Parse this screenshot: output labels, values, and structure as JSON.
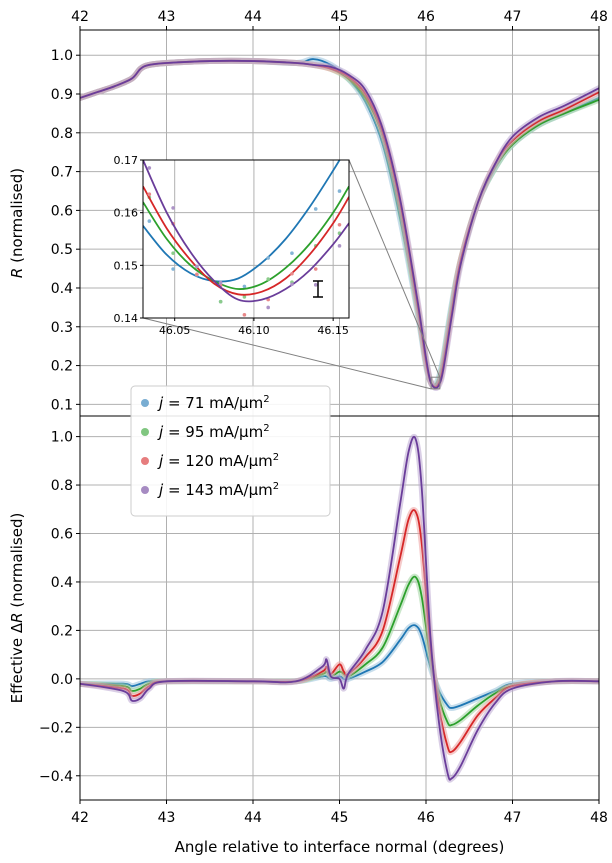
{
  "colors": {
    "j71": "#1f77b4",
    "j95": "#2ca02c",
    "j120": "#d62728",
    "j143": "#6a3d9a",
    "grid": "#b0b0b0"
  },
  "chart_data": [
    {
      "id": "top",
      "type": "line",
      "xlabel": "",
      "ylabel_italic": "R",
      "ylabel_rest": " (normalised)",
      "xlim": [
        42,
        48
      ],
      "ylim": [
        0.07,
        1.065
      ],
      "xticks": [
        "42",
        "43",
        "44",
        "45",
        "46",
        "47",
        "48"
      ],
      "yticks": [
        "0.1",
        "0.2",
        "0.3",
        "0.4",
        "0.5",
        "0.6",
        "0.7",
        "0.8",
        "0.9",
        "1.0"
      ],
      "grid": true,
      "x": [
        42.0,
        42.2,
        42.4,
        42.6,
        42.7,
        42.8,
        43.0,
        43.5,
        44.0,
        44.5,
        44.7,
        44.9,
        45.1,
        45.3,
        45.5,
        45.7,
        45.9,
        46.0,
        46.05,
        46.1,
        46.15,
        46.2,
        46.3,
        46.4,
        46.6,
        46.8,
        47.0,
        47.3,
        47.6,
        48.0
      ],
      "series": [
        {
          "name_prefix": "j",
          "name_value": "71 mA/μm",
          "name_sup": "2",
          "color_key": "j71",
          "values": [
            0.89,
            0.905,
            0.92,
            0.94,
            0.965,
            0.975,
            0.98,
            0.985,
            0.985,
            0.98,
            0.99,
            0.975,
            0.94,
            0.88,
            0.77,
            0.58,
            0.34,
            0.2,
            0.16,
            0.15,
            0.17,
            0.22,
            0.36,
            0.47,
            0.62,
            0.71,
            0.77,
            0.82,
            0.85,
            0.89
          ]
        },
        {
          "name_prefix": "j",
          "name_value": "95 mA/μm",
          "name_sup": "2",
          "color_key": "j95",
          "values": [
            0.89,
            0.905,
            0.92,
            0.94,
            0.965,
            0.975,
            0.98,
            0.985,
            0.985,
            0.98,
            0.975,
            0.965,
            0.94,
            0.89,
            0.79,
            0.6,
            0.35,
            0.21,
            0.16,
            0.146,
            0.16,
            0.21,
            0.35,
            0.47,
            0.62,
            0.71,
            0.77,
            0.82,
            0.85,
            0.885
          ]
        },
        {
          "name_prefix": "j",
          "name_value": "120 mA/μm",
          "name_sup": "2",
          "color_key": "j120",
          "values": [
            0.89,
            0.905,
            0.92,
            0.94,
            0.965,
            0.975,
            0.98,
            0.985,
            0.985,
            0.98,
            0.975,
            0.965,
            0.945,
            0.9,
            0.8,
            0.62,
            0.36,
            0.21,
            0.16,
            0.145,
            0.155,
            0.2,
            0.34,
            0.47,
            0.62,
            0.72,
            0.78,
            0.83,
            0.86,
            0.905
          ]
        },
        {
          "name_prefix": "j",
          "name_value": "143 mA/μm",
          "name_sup": "2",
          "color_key": "j143",
          "values": [
            0.89,
            0.905,
            0.92,
            0.94,
            0.965,
            0.975,
            0.98,
            0.985,
            0.985,
            0.98,
            0.975,
            0.97,
            0.95,
            0.91,
            0.81,
            0.63,
            0.37,
            0.22,
            0.16,
            0.143,
            0.15,
            0.19,
            0.33,
            0.46,
            0.62,
            0.72,
            0.79,
            0.84,
            0.87,
            0.915
          ]
        }
      ]
    },
    {
      "id": "inset",
      "type": "line",
      "xlim": [
        46.03,
        46.16
      ],
      "ylim": [
        0.14,
        0.17
      ],
      "xticks": [
        {
          "value": 46.05,
          "label": "46.05"
        },
        {
          "value": 46.1,
          "label": "46.10"
        },
        {
          "value": 46.15,
          "label": "46.15"
        }
      ],
      "yticks": [
        {
          "value": 0.14,
          "label": "0.14"
        },
        {
          "value": 0.15,
          "label": "0.15"
        },
        {
          "value": 0.16,
          "label": "0.16"
        },
        {
          "value": 0.17,
          "label": "0.17"
        }
      ],
      "grid": true,
      "x": [
        46.03,
        46.045,
        46.06,
        46.075,
        46.09,
        46.105,
        46.12,
        46.135,
        46.15,
        46.16
      ],
      "series": [
        {
          "color_key": "j71",
          "values": [
            0.1575,
            0.152,
            0.1485,
            0.147,
            0.1475,
            0.1505,
            0.155,
            0.161,
            0.168,
            0.173
          ]
        },
        {
          "color_key": "j95",
          "values": [
            0.162,
            0.155,
            0.15,
            0.147,
            0.1455,
            0.1465,
            0.1495,
            0.154,
            0.16,
            0.165
          ]
        },
        {
          "color_key": "j120",
          "values": [
            0.165,
            0.157,
            0.151,
            0.1465,
            0.1445,
            0.145,
            0.1475,
            0.152,
            0.158,
            0.163
          ]
        },
        {
          "color_key": "j143",
          "values": [
            0.17,
            0.16,
            0.1525,
            0.147,
            0.1435,
            0.1435,
            0.1455,
            0.149,
            0.154,
            0.158
          ]
        }
      ]
    },
    {
      "id": "bottom",
      "type": "line",
      "xlabel": "Angle relative to interface normal (degrees)",
      "ylabel_rest_pre": "Effective Δ",
      "ylabel_italic": "R",
      "ylabel_rest": " (normalised)",
      "xlim": [
        42,
        48
      ],
      "ylim": [
        -0.5,
        1.085
      ],
      "xticks": [
        "42",
        "43",
        "44",
        "45",
        "46",
        "47",
        "48"
      ],
      "yticks": [
        "−0.4",
        "−0.2",
        "0.0",
        "0.2",
        "0.4",
        "0.6",
        "0.8",
        "1.0"
      ],
      "grid": true,
      "x": [
        42.0,
        42.5,
        42.6,
        42.7,
        42.8,
        43.0,
        44.0,
        44.5,
        44.8,
        44.85,
        44.9,
        45.0,
        45.05,
        45.1,
        45.3,
        45.5,
        45.7,
        45.8,
        45.88,
        45.95,
        46.05,
        46.15,
        46.25,
        46.3,
        46.4,
        46.6,
        46.8,
        47.0,
        47.5,
        48.0
      ],
      "series": [
        {
          "color_key": "j71",
          "values": [
            -0.02,
            -0.02,
            -0.03,
            -0.02,
            -0.01,
            -0.01,
            -0.01,
            -0.01,
            0.01,
            0.01,
            0.0,
            0.01,
            0.0,
            0.0,
            0.03,
            0.07,
            0.16,
            0.21,
            0.22,
            0.18,
            0.05,
            -0.05,
            -0.11,
            -0.12,
            -0.11,
            -0.08,
            -0.05,
            -0.02,
            -0.01,
            -0.01
          ]
        },
        {
          "color_key": "j95",
          "values": [
            -0.02,
            -0.03,
            -0.05,
            -0.04,
            -0.02,
            -0.01,
            -0.01,
            -0.01,
            0.02,
            0.03,
            0.01,
            0.03,
            0.02,
            0.01,
            0.06,
            0.13,
            0.3,
            0.39,
            0.42,
            0.34,
            0.09,
            -0.08,
            -0.18,
            -0.19,
            -0.17,
            -0.11,
            -0.06,
            -0.03,
            -0.01,
            -0.01
          ]
        },
        {
          "color_key": "j120",
          "values": [
            -0.02,
            -0.04,
            -0.07,
            -0.06,
            -0.03,
            -0.01,
            -0.01,
            -0.01,
            0.03,
            0.05,
            0.02,
            0.06,
            0.03,
            0.02,
            0.09,
            0.2,
            0.5,
            0.66,
            0.69,
            0.56,
            0.14,
            -0.12,
            -0.28,
            -0.3,
            -0.26,
            -0.15,
            -0.08,
            -0.03,
            -0.01,
            -0.01
          ]
        },
        {
          "color_key": "j143",
          "values": [
            -0.02,
            -0.05,
            -0.09,
            -0.08,
            -0.04,
            -0.01,
            -0.01,
            -0.01,
            0.05,
            0.08,
            0.01,
            0.0,
            -0.04,
            0.02,
            0.12,
            0.28,
            0.72,
            0.94,
            0.99,
            0.79,
            0.18,
            -0.18,
            -0.39,
            -0.41,
            -0.36,
            -0.21,
            -0.1,
            -0.04,
            -0.01,
            -0.01
          ]
        }
      ]
    }
  ],
  "legend": {
    "entries": [
      {
        "italic": "j",
        "text": " = 71 mA/μm",
        "sup": "2",
        "color_key": "j71"
      },
      {
        "italic": "j",
        "text": " = 95 mA/μm",
        "sup": "2",
        "color_key": "j95"
      },
      {
        "italic": "j",
        "text": " = 120 mA/μm",
        "sup": "2",
        "color_key": "j120"
      },
      {
        "italic": "j",
        "text": " = 143 mA/μm",
        "sup": "2",
        "color_key": "j143"
      }
    ]
  }
}
